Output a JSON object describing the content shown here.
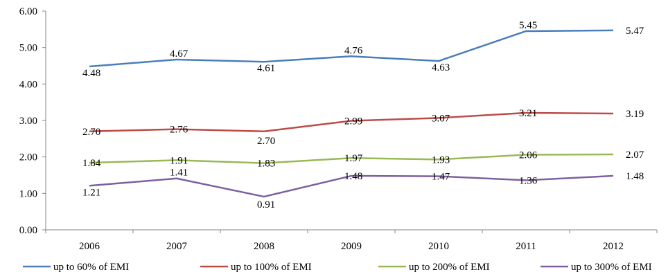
{
  "chart_data": {
    "type": "line",
    "title": "",
    "xlabel": "",
    "ylabel": "",
    "categories": [
      "2006",
      "2007",
      "2008",
      "2009",
      "2010",
      "2011",
      "2012"
    ],
    "ylim": [
      0,
      6
    ],
    "yticks": [
      "0.00",
      "1.00",
      "2.00",
      "3.00",
      "4.00",
      "5.00",
      "6.00"
    ],
    "grid": false,
    "legend_position": "bottom",
    "series": [
      {
        "name": "up to 60% of EMI",
        "color": "#4a7ebb",
        "values": [
          4.48,
          4.67,
          4.61,
          4.76,
          4.63,
          5.45,
          5.47
        ],
        "labels": [
          "4.48",
          "4.67",
          "4.61",
          "4.76",
          "4.63",
          "5.45",
          "5.47"
        ]
      },
      {
        "name": "up to 100% of EMI",
        "color": "#be4b48",
        "values": [
          2.7,
          2.76,
          2.7,
          2.99,
          3.07,
          3.21,
          3.19
        ],
        "labels": [
          "2.70",
          "2.76",
          "2.70",
          "2.99",
          "3.07",
          "3.21",
          "3.19"
        ]
      },
      {
        "name": "up to 200% of EMI",
        "color": "#98b954",
        "values": [
          1.84,
          1.91,
          1.83,
          1.97,
          1.93,
          2.06,
          2.07
        ],
        "labels": [
          "1.84",
          "1.91",
          "1.83",
          "1.97",
          "1.93",
          "2.06",
          "2.07"
        ]
      },
      {
        "name": "up to 300% of EMI",
        "color": "#7d60a0",
        "values": [
          1.21,
          1.41,
          0.91,
          1.48,
          1.47,
          1.36,
          1.48
        ],
        "labels": [
          "1.21",
          "1.41",
          "0.91",
          "1.48",
          "1.47",
          "1.36",
          "1.48"
        ]
      }
    ]
  }
}
